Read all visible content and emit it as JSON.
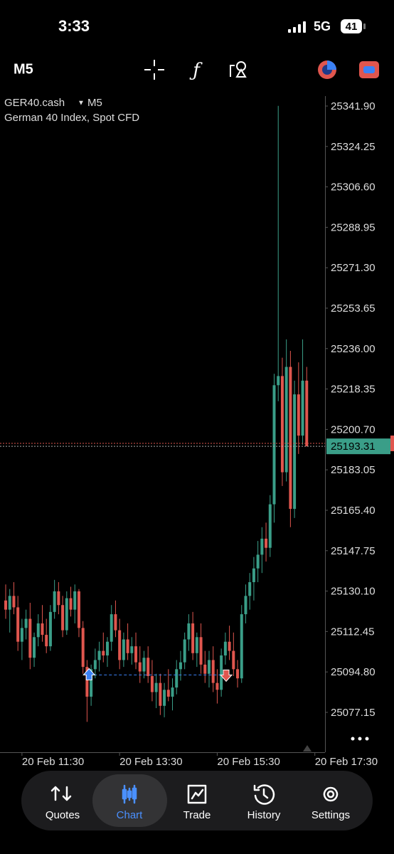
{
  "status_bar": {
    "time": "3:33",
    "network": "5G",
    "battery": "41"
  },
  "toolbar": {
    "timeframe": "M5"
  },
  "chart_data": {
    "type": "candlestick",
    "symbol": "GER40.cash",
    "timeframe": "M5",
    "description": "German 40 Index, Spot CFD",
    "up_color": "#3a9e88",
    "down_color": "#e0564e",
    "open": [
      25126,
      25122,
      25128,
      25123,
      25108,
      25114,
      25118,
      25101,
      25110,
      25116,
      25111,
      25106,
      25121,
      25130,
      25124,
      25113,
      25127,
      25122,
      25130,
      25114,
      25097,
      25084,
      25096,
      25100,
      25104,
      25102,
      25108,
      25120,
      25113,
      25100,
      25109,
      25103,
      25106,
      25099,
      25095,
      25101,
      25093,
      25086,
      25090,
      25080,
      25087,
      25084,
      25088,
      25096,
      25099,
      25109,
      25116,
      25103,
      25110,
      25098,
      25094,
      25100,
      25090,
      25087,
      25102,
      25108,
      25104,
      25096,
      25092,
      25120,
      25128,
      25134,
      25140,
      25146,
      25153,
      25149,
      25168,
      25220,
      25224,
      25182,
      25228,
      25166,
      25216,
      25198,
      25222
    ],
    "high": [
      25133,
      25131,
      25134,
      25128,
      25118,
      25122,
      25125,
      25112,
      25120,
      25124,
      25118,
      25124,
      25135,
      25134,
      25128,
      25130,
      25132,
      25133,
      25131,
      25117,
      25100,
      25098,
      25105,
      25108,
      25112,
      25110,
      25124,
      25126,
      25118,
      25112,
      25116,
      25110,
      25112,
      25106,
      25104,
      25106,
      25100,
      25094,
      25094,
      25090,
      25096,
      25092,
      25100,
      25104,
      25112,
      25120,
      25121,
      25112,
      25116,
      25104,
      25104,
      25106,
      25096,
      25105,
      25112,
      25115,
      25112,
      25100,
      25124,
      25133,
      25138,
      25145,
      25152,
      25158,
      25160,
      25172,
      25225,
      25342,
      25232,
      25240,
      25235,
      25222,
      25230,
      25240,
      25228
    ],
    "low": [
      25118,
      25112,
      25120,
      25104,
      25100,
      25109,
      25096,
      25097,
      25106,
      25108,
      25103,
      25104,
      25118,
      25120,
      25110,
      25111,
      25119,
      25116,
      25110,
      25094,
      25073,
      25080,
      25092,
      25095,
      25099,
      25097,
      25104,
      25110,
      25096,
      25097,
      25100,
      25098,
      25096,
      25090,
      25092,
      25090,
      25082,
      25079,
      25076,
      25075,
      25082,
      25078,
      25085,
      25091,
      25096,
      25104,
      25100,
      25097,
      25094,
      25090,
      25088,
      25086,
      25081,
      25084,
      25098,
      25100,
      25093,
      25088,
      25090,
      25116,
      25122,
      25126,
      25134,
      25138,
      25143,
      25145,
      25160,
      25213,
      25176,
      25178,
      25158,
      25162,
      25190,
      25194,
      25196
    ],
    "close": [
      25122,
      25128,
      25123,
      25108,
      25114,
      25118,
      25101,
      25110,
      25116,
      25111,
      25106,
      25121,
      25130,
      25124,
      25113,
      25127,
      25122,
      25130,
      25114,
      25097,
      25084,
      25096,
      25100,
      25104,
      25102,
      25108,
      25120,
      25113,
      25100,
      25109,
      25103,
      25106,
      25099,
      25095,
      25101,
      25093,
      25086,
      25090,
      25080,
      25087,
      25084,
      25088,
      25096,
      25099,
      25109,
      25116,
      25103,
      25110,
      25098,
      25094,
      25100,
      25090,
      25087,
      25102,
      25108,
      25104,
      25096,
      25092,
      25120,
      25128,
      25134,
      25140,
      25146,
      25153,
      25149,
      25168,
      25220,
      25224,
      25182,
      25228,
      25166,
      25216,
      25198,
      25222,
      25193.31
    ],
    "ask_line": 25194.6,
    "trades": {
      "buy": {
        "x": 20.5,
        "price": 25093.5
      },
      "sell": {
        "x": 54.2,
        "price": 25093.5
      }
    },
    "xlim": [
      -1.4,
      78.5
    ],
    "xticks": [
      {
        "value": 4,
        "label": "20 Feb 11:30"
      },
      {
        "value": 28,
        "label": "20 Feb 13:30"
      },
      {
        "value": 52,
        "label": "20 Feb 15:30"
      },
      {
        "value": 76,
        "label": "20 Feb 17:30"
      }
    ],
    "ylim": [
      25059.74,
      25344.7
    ],
    "yticks": [
      {
        "value": 25341.9,
        "label": "25341.90"
      },
      25324.25,
      {
        "value": 25306.6,
        "label": "25306.60"
      },
      25288.95,
      {
        "value": 25271.3,
        "label": "25271.30"
      },
      25253.65,
      {
        "value": 25236,
        "label": "25236.00"
      },
      25218.35,
      {
        "value": 25200.7,
        "label": "25200.70"
      },
      25183.05,
      {
        "value": 25165.4,
        "label": "25165.40"
      },
      25147.75,
      {
        "value": 25130.1,
        "label": "25130.10"
      },
      25112.45,
      {
        "value": 25094.8,
        "label": "25094.80"
      },
      25077.15
    ]
  },
  "nav": {
    "items": [
      "Quotes",
      "Chart",
      "Trade",
      "History",
      "Settings"
    ],
    "active": 1
  }
}
